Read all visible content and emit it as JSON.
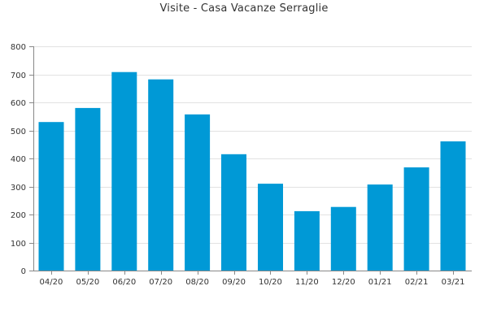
{
  "chart_data": {
    "type": "bar",
    "title": "Visite - Casa Vacanze Serraglie",
    "xlabel": "",
    "ylabel": "",
    "categories": [
      "04/20",
      "05/20",
      "06/20",
      "07/20",
      "08/20",
      "09/20",
      "10/20",
      "11/20",
      "12/20",
      "01/21",
      "02/21",
      "03/21"
    ],
    "values": [
      530,
      580,
      708,
      682,
      557,
      415,
      310,
      212,
      227,
      307,
      368,
      461
    ],
    "ylim": [
      0,
      800
    ],
    "yticks": [
      0,
      100,
      200,
      300,
      400,
      500,
      600,
      700,
      800
    ],
    "grid": true,
    "legend": "none",
    "colors": {
      "bar": "#0099d6",
      "grid": "#e2e2e2",
      "axis": "#888888",
      "text": "#333333"
    }
  }
}
